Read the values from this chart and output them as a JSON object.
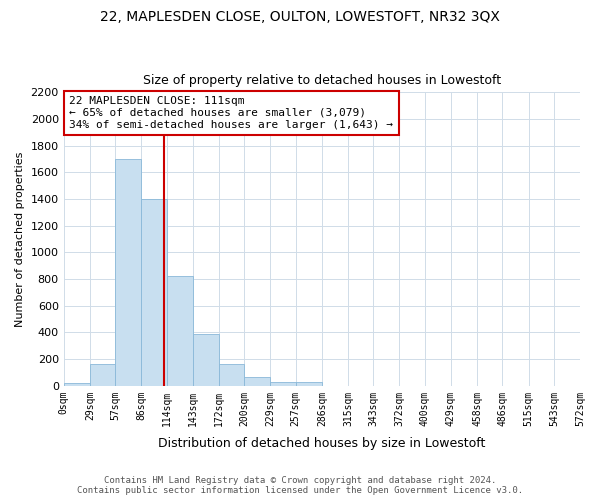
{
  "title": "22, MAPLESDEN CLOSE, OULTON, LOWESTOFT, NR32 3QX",
  "subtitle": "Size of property relative to detached houses in Lowestoft",
  "xlabel": "Distribution of detached houses by size in Lowestoft",
  "ylabel": "Number of detached properties",
  "bar_edges": [
    0,
    29,
    57,
    86,
    114,
    143,
    172,
    200,
    229,
    257,
    286,
    315,
    343,
    372,
    400,
    429,
    458,
    486,
    515,
    543,
    572
  ],
  "bar_heights": [
    20,
    160,
    1700,
    1400,
    820,
    390,
    165,
    65,
    30,
    25,
    0,
    0,
    0,
    0,
    0,
    0,
    0,
    0,
    0,
    0
  ],
  "bar_color": "#c8dff0",
  "bar_edgecolor": "#8ab8d8",
  "annotation_line1": "22 MAPLESDEN CLOSE: 111sqm",
  "annotation_line2": "← 65% of detached houses are smaller (3,079)",
  "annotation_line3": "34% of semi-detached houses are larger (1,643) →",
  "property_size": 111,
  "vline_x": 111,
  "vline_color": "#cc0000",
  "box_color": "#cc0000",
  "ylim": [
    0,
    2200
  ],
  "yticks": [
    0,
    200,
    400,
    600,
    800,
    1000,
    1200,
    1400,
    1600,
    1800,
    2000,
    2200
  ],
  "tick_labels": [
    "0sqm",
    "29sqm",
    "57sqm",
    "86sqm",
    "114sqm",
    "143sqm",
    "172sqm",
    "200sqm",
    "229sqm",
    "257sqm",
    "286sqm",
    "315sqm",
    "343sqm",
    "372sqm",
    "400sqm",
    "429sqm",
    "458sqm",
    "486sqm",
    "515sqm",
    "543sqm",
    "572sqm"
  ],
  "footer_line1": "Contains HM Land Registry data © Crown copyright and database right 2024.",
  "footer_line2": "Contains public sector information licensed under the Open Government Licence v3.0.",
  "bg_color": "#ffffff",
  "grid_color": "#d0dce8"
}
